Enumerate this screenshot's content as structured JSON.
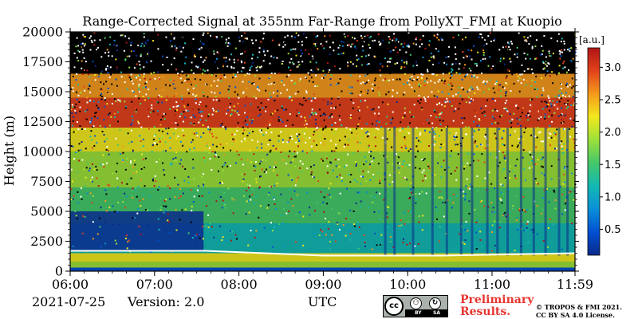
{
  "colors": {
    "colormap": [
      "#0a2a8c",
      "#0050d2",
      "#0a8fd8",
      "#13b8b4",
      "#44c86b",
      "#9be03a",
      "#f1e81d",
      "#f59a1c",
      "#e2421b",
      "#b01515"
    ],
    "background_noise": "#000000",
    "low_signal_noise": "#ffffff",
    "footer_red": "#e8352f",
    "cc_badge_gray": "#aab2ab"
  },
  "chart_data": {
    "type": "heatmap",
    "title": "Range-Corrected Signal at 355nm Far-Range from PollyXT_FMI at Kuopio",
    "xlabel": "",
    "ylabel": "Height (m)",
    "x_tick_labels": [
      "06:00",
      "07:00",
      "08:00",
      "09:00",
      "10:00",
      "11:00",
      "11:59"
    ],
    "x_ticks_hours": [
      6.0,
      7.0,
      8.0,
      9.0,
      10.0,
      11.0,
      11.983
    ],
    "xlim_hours": [
      6.0,
      11.983
    ],
    "y_ticks": [
      0,
      2500,
      5000,
      7500,
      10000,
      12500,
      15000,
      17500,
      20000
    ],
    "y_tick_labels": [
      "0",
      "2500",
      "5000",
      "7500",
      "10000",
      "12500",
      "15000",
      "17500",
      "20000"
    ],
    "ylim": [
      0,
      20000
    ],
    "colorbar": {
      "label": "[a.u.]",
      "range": [
        0.1,
        3.3
      ],
      "ticks": [
        0.5,
        1.0,
        1.5,
        2.0,
        2.5,
        3.0
      ],
      "tick_labels": [
        "0.5",
        "1.0",
        "1.5",
        "2.0",
        "2.5",
        "3.0"
      ]
    },
    "boundary_layer_top_m": [
      {
        "t": 6.0,
        "h": 1700
      },
      {
        "t": 7.6,
        "h": 1700
      },
      {
        "t": 9.0,
        "h": 1300
      },
      {
        "t": 10.4,
        "h": 1300
      },
      {
        "t": 11.983,
        "h": 1500
      }
    ],
    "grid": false
  },
  "footer": {
    "date": "2021-07-25",
    "version": "Version: 2.0",
    "timezone": "UTC",
    "preliminary": [
      "Preliminary",
      "Results."
    ],
    "copyright": [
      "© TROPOS & FMI 2021.",
      "CC BY SA 4.0 License."
    ],
    "license_badge": {
      "cc": "cc",
      "by": "BY",
      "sa": "SA"
    }
  }
}
